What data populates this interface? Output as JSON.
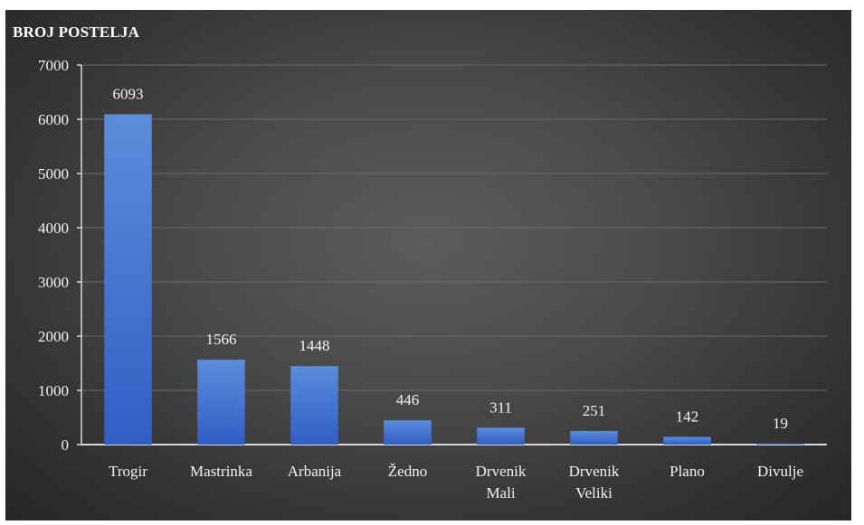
{
  "chart_data": {
    "type": "bar",
    "title": "BROJ POSTELJA",
    "categories": [
      "Trogir",
      "Mastrinka",
      "Arbanija",
      "Žedno",
      "Drvenik Mali",
      "Drvenik Veliki",
      "Plano",
      "Divulje"
    ],
    "category_lines": [
      [
        "Trogir"
      ],
      [
        "Mastrinka"
      ],
      [
        "Arbanija"
      ],
      [
        "Žedno"
      ],
      [
        "Drvenik",
        "Mali"
      ],
      [
        "Drvenik",
        "Veliki"
      ],
      [
        "Plano"
      ],
      [
        "Divulje"
      ]
    ],
    "values": [
      6093,
      1566,
      1448,
      446,
      311,
      251,
      142,
      19
    ],
    "data_labels": [
      "6093",
      "1566",
      "1448",
      "446",
      "311",
      "251",
      "142",
      "19"
    ],
    "ylim": [
      0,
      7000
    ],
    "yticks": [
      0,
      1000,
      2000,
      3000,
      4000,
      5000,
      6000,
      7000
    ],
    "grid": true,
    "colors": {
      "bar_top": "#5b8ddb",
      "bar_bottom": "#2f5fc4",
      "axis": "#d9d9d9",
      "grid": "#6a6a6a",
      "text": "#f2f2f2"
    }
  }
}
